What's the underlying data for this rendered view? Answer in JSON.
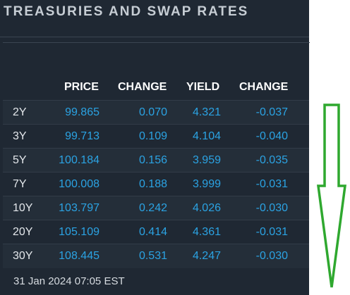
{
  "title": "TREASURIES AND SWAP RATES",
  "columns": {
    "price": "PRICE",
    "change": "CHANGE",
    "yield": "YIELD",
    "yield_change": "CHANGE"
  },
  "rows": [
    {
      "tenor": "2Y",
      "price": "99.865",
      "change": "0.070",
      "yield": "4.321",
      "yield_change": "-0.037"
    },
    {
      "tenor": "3Y",
      "price": "99.713",
      "change": "0.109",
      "yield": "4.104",
      "yield_change": "-0.040"
    },
    {
      "tenor": "5Y",
      "price": "100.184",
      "change": "0.156",
      "yield": "3.959",
      "yield_change": "-0.035"
    },
    {
      "tenor": "7Y",
      "price": "100.008",
      "change": "0.188",
      "yield": "3.999",
      "yield_change": "-0.031"
    },
    {
      "tenor": "10Y",
      "price": "103.797",
      "change": "0.242",
      "yield": "4.026",
      "yield_change": "-0.030"
    },
    {
      "tenor": "20Y",
      "price": "105.109",
      "change": "0.414",
      "yield": "4.361",
      "yield_change": "-0.031"
    },
    {
      "tenor": "30Y",
      "price": "108.445",
      "change": "0.531",
      "yield": "4.247",
      "yield_change": "-0.030"
    }
  ],
  "timestamp": "31 Jan 2024 07:05 EST",
  "colors": {
    "panel_bg": "#1f2833",
    "value_blue": "#2ba3e3",
    "arrow_green": "#2fa82f"
  },
  "annotation_icon": "down-arrow-icon"
}
